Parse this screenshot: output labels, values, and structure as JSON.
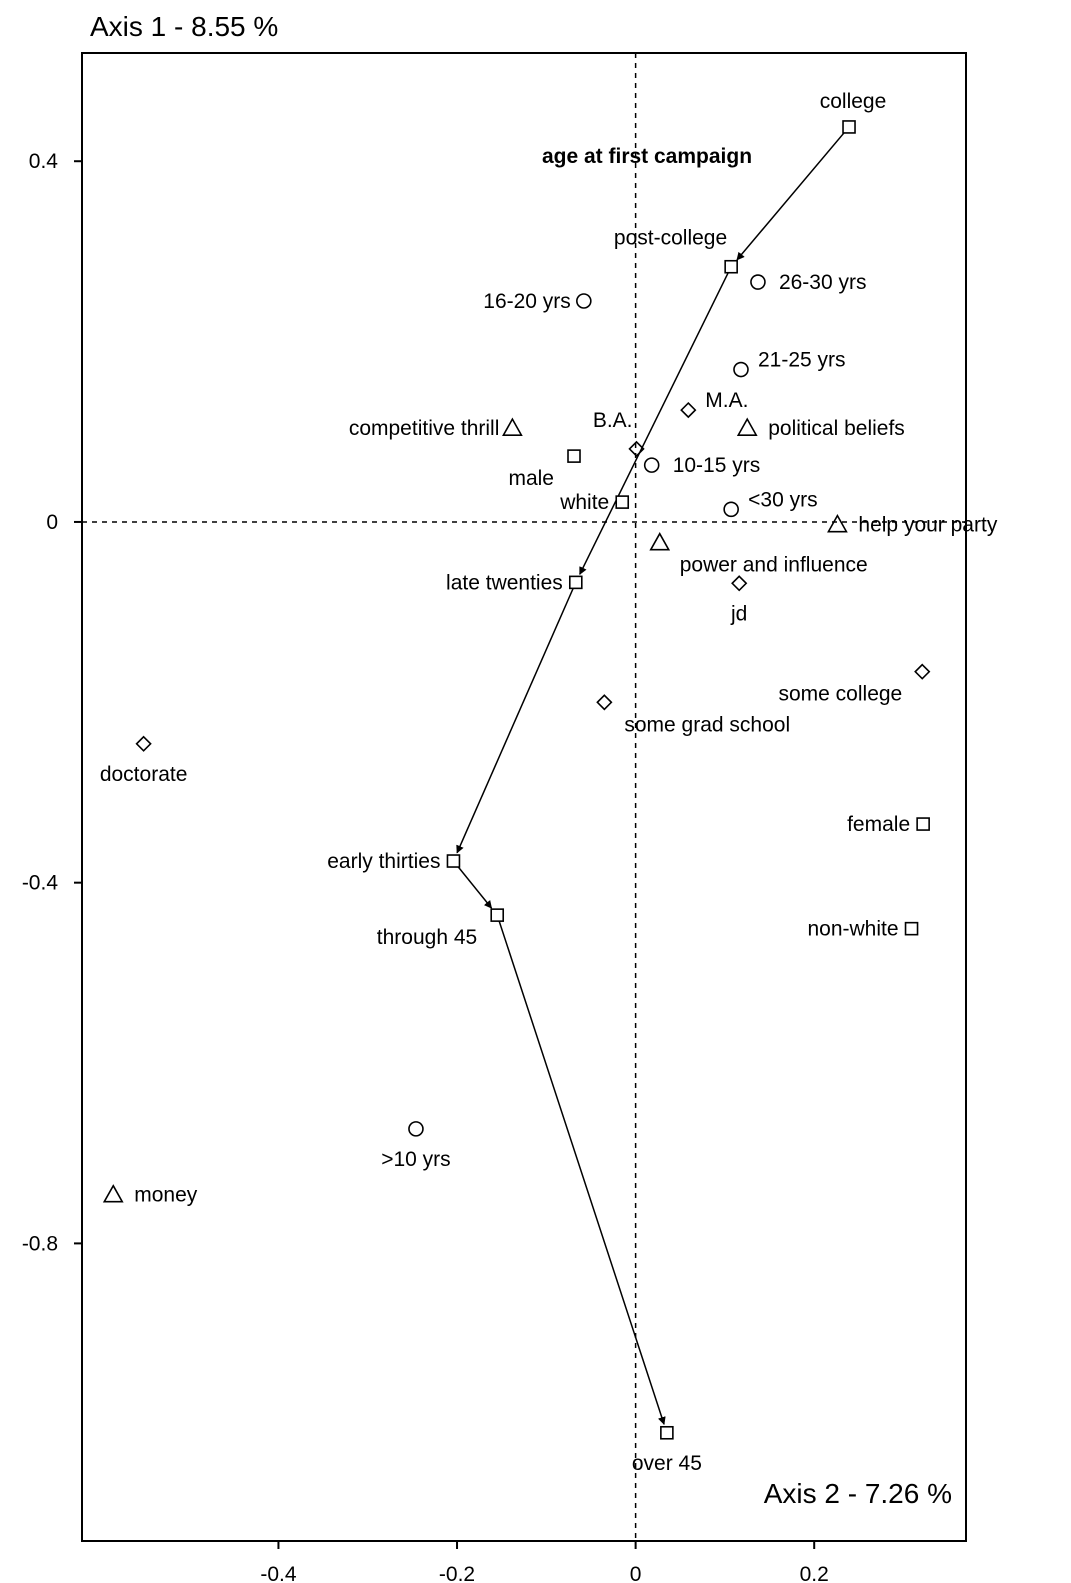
{
  "chart_data": {
    "type": "scatter",
    "title": "age at first campaign",
    "x_axis_title": "Axis 2 - 7.26 %",
    "y_axis_title": "Axis 1 - 8.55 %",
    "xlim": [
      -0.62,
      0.37
    ],
    "ylim": [
      -1.13,
      0.52
    ],
    "x_ticks": [
      {
        "value": -0.4,
        "label": "-0.4"
      },
      {
        "value": -0.2,
        "label": "-0.2"
      },
      {
        "value": 0,
        "label": "0"
      },
      {
        "value": 0.2,
        "label": "0.2"
      }
    ],
    "y_ticks": [
      {
        "value": 0.4,
        "label": "0.4"
      },
      {
        "value": 0,
        "label": "0"
      },
      {
        "value": -0.4,
        "label": "-0.4"
      },
      {
        "value": -0.8,
        "label": "-0.8"
      }
    ],
    "reference_lines": {
      "x": 0,
      "y": 0
    },
    "grid": false,
    "legend": "none",
    "points": [
      {
        "label": "college",
        "x": 0.239,
        "y": 0.438,
        "marker": "square",
        "anchor": "above"
      },
      {
        "label": "post-college",
        "x": 0.107,
        "y": 0.283,
        "marker": "square",
        "anchor": "above-left"
      },
      {
        "label": "late twenties",
        "x": -0.067,
        "y": -0.067,
        "marker": "square",
        "anchor": "left"
      },
      {
        "label": "early thirties",
        "x": -0.204,
        "y": -0.376,
        "marker": "square",
        "anchor": "left"
      },
      {
        "label": "through 45",
        "x": -0.155,
        "y": -0.436,
        "marker": "square",
        "anchor": "below-left"
      },
      {
        "label": "over 45",
        "x": 0.035,
        "y": -1.01,
        "marker": "square",
        "anchor": "below"
      },
      {
        "label": "male",
        "x": -0.069,
        "y": 0.073,
        "marker": "square",
        "anchor": "below-left"
      },
      {
        "label": "white",
        "x": -0.015,
        "y": 0.022,
        "marker": "square",
        "anchor": "left"
      },
      {
        "label": "female",
        "x": 0.322,
        "y": -0.335,
        "marker": "square",
        "anchor": "left"
      },
      {
        "label": "non-white",
        "x": 0.309,
        "y": -0.451,
        "marker": "square",
        "anchor": "left"
      },
      {
        "label": "16-20 yrs",
        "x": -0.058,
        "y": 0.245,
        "marker": "circle",
        "anchor": "left"
      },
      {
        "label": "26-30 yrs",
        "x": 0.137,
        "y": 0.266,
        "marker": "circle",
        "anchor": "right"
      },
      {
        "label": "21-25 yrs",
        "x": 0.118,
        "y": 0.169,
        "marker": "circle",
        "anchor": "right-above"
      },
      {
        "label": "10-15 yrs",
        "x": 0.018,
        "y": 0.063,
        "marker": "circle",
        "anchor": "right"
      },
      {
        "label": "<30 yrs",
        "x": 0.107,
        "y": 0.014,
        "marker": "circle",
        "anchor": "right-above"
      },
      {
        "label": ">10 yrs",
        "x": -0.246,
        "y": -0.673,
        "marker": "circle",
        "anchor": "below"
      },
      {
        "label": "B.A.",
        "x": 0.001,
        "y": 0.081,
        "marker": "diamond",
        "anchor": "above-left"
      },
      {
        "label": "M.A.",
        "x": 0.059,
        "y": 0.124,
        "marker": "diamond",
        "anchor": "right-above"
      },
      {
        "label": "jd",
        "x": 0.116,
        "y": -0.068,
        "marker": "diamond",
        "anchor": "below"
      },
      {
        "label": "some college",
        "x": 0.321,
        "y": -0.166,
        "marker": "diamond",
        "anchor": "below-left"
      },
      {
        "label": "some grad school",
        "x": -0.035,
        "y": -0.2,
        "marker": "diamond",
        "anchor": "below-right"
      },
      {
        "label": "doctorate",
        "x": -0.551,
        "y": -0.246,
        "marker": "diamond",
        "anchor": "below"
      },
      {
        "label": "competitive thrill",
        "x": -0.138,
        "y": 0.104,
        "marker": "triangle",
        "anchor": "left"
      },
      {
        "label": "political beliefs",
        "x": 0.125,
        "y": 0.104,
        "marker": "triangle",
        "anchor": "right"
      },
      {
        "label": "help your party",
        "x": 0.226,
        "y": -0.003,
        "marker": "triangle",
        "anchor": "right"
      },
      {
        "label": "power and influence",
        "x": 0.027,
        "y": -0.023,
        "marker": "triangle",
        "anchor": "below-right"
      },
      {
        "label": "money",
        "x": -0.585,
        "y": -0.746,
        "marker": "triangle",
        "anchor": "right"
      }
    ],
    "trajectory": {
      "name": "age at first campaign",
      "path": [
        "college",
        "post-college",
        "late twenties",
        "early thirties",
        "through 45",
        "over 45"
      ]
    }
  }
}
